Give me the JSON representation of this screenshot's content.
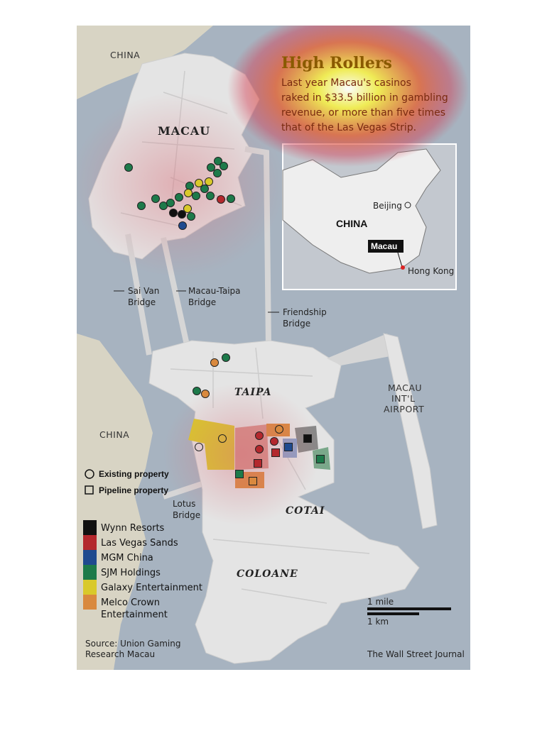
{
  "title": "High Rollers",
  "dek": [
    "Last year Macau's casinos",
    "raked in $33.5 billion in gambling",
    "revenue, or more than five times",
    "that of the Las Vegas Strip."
  ],
  "places": {
    "china_top": "CHINA",
    "china_left": "CHINA",
    "macau": "MACAU",
    "taipa": "TAIPA",
    "cotai": "COTAI",
    "coloane": "COLOANE",
    "airport": [
      "MACAU",
      "INT'L",
      "AIRPORT"
    ],
    "sai_van": [
      "Sai Van",
      "Bridge"
    ],
    "macau_taipa": [
      "Macau-Taipa",
      "Bridge"
    ],
    "friendship": [
      "Friendship",
      "Bridge"
    ],
    "lotus": [
      "Lotus",
      "Bridge"
    ]
  },
  "inset": {
    "country": "CHINA",
    "beijing": "Beijing",
    "macau": "Macau",
    "hong_kong": "Hong Kong"
  },
  "legend": {
    "shapes": [
      {
        "icon": "circle-icon",
        "label": "Existing property"
      },
      {
        "icon": "square-icon",
        "label": "Pipeline property"
      }
    ],
    "operators": [
      {
        "label": "Wynn Resorts",
        "color": "#111111"
      },
      {
        "label": "Las Vegas Sands",
        "color": "#b3282d"
      },
      {
        "label": "MGM China",
        "color": "#1f4a8f"
      },
      {
        "label": "SJM Holdings",
        "color": "#1d7a4a"
      },
      {
        "label": "Galaxy Entertainment",
        "color": "#d9c92a"
      },
      {
        "label": "Melco Crown",
        "label2": "Entertainment",
        "color": "#d9893e"
      }
    ]
  },
  "scale": {
    "mile": "1 mile",
    "km": "1 km"
  },
  "source": [
    "Source: Union Gaming",
    "Research Macau"
  ],
  "credit": "The Wall Street Journal",
  "colors": {
    "water": "#a7b3c0",
    "land": "#e4e4e4",
    "mainland": "#d8d4c4",
    "heat_hot": "#fff7a0",
    "heat_cool": "#d8404a"
  }
}
